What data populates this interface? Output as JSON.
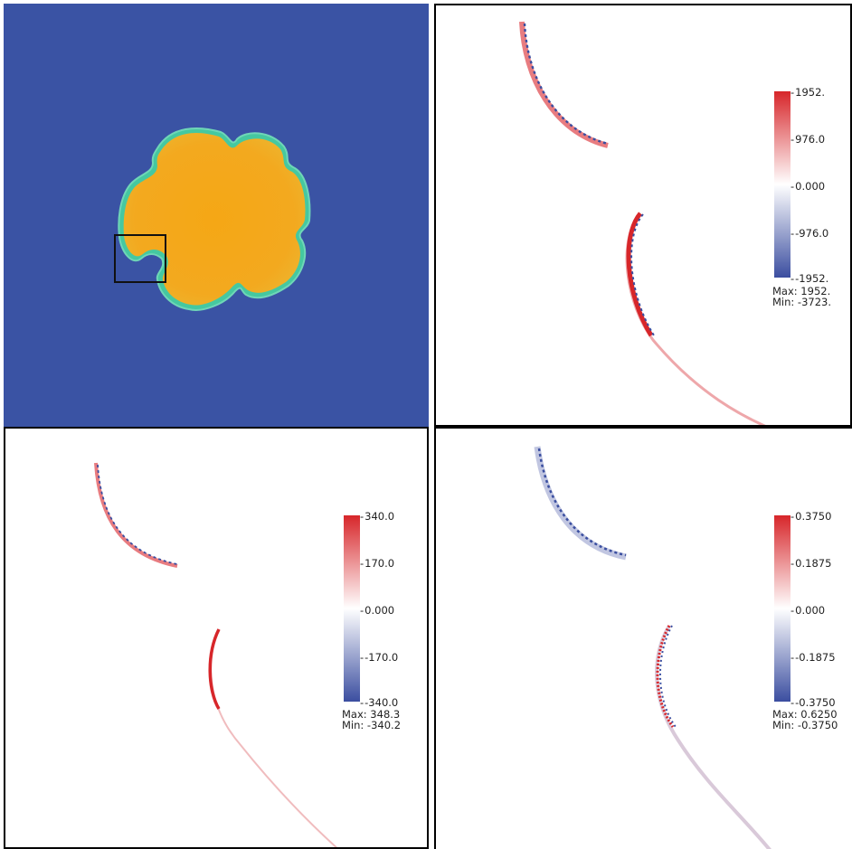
{
  "panels": [
    {
      "name": "domain-overview",
      "colors": {
        "background": "#3a53a4",
        "fill": "#f2a81c",
        "edge": "#45c8a0",
        "zoom_box": "#111111"
      }
    },
    {
      "name": "field-panel-1",
      "colorbar": {
        "ticks": [
          "1952.",
          "976.0",
          "0.000",
          "-976.0",
          "-1952."
        ],
        "max_label": "Max:  1952.",
        "min_label": "Min: -3723."
      }
    },
    {
      "name": "field-panel-2",
      "colorbar": {
        "ticks": [
          "340.0",
          "170.0",
          "0.000",
          "-170.0",
          "-340.0"
        ],
        "max_label": "Max:  348.3",
        "min_label": "Min: -340.2"
      }
    },
    {
      "name": "field-panel-3",
      "colorbar": {
        "ticks": [
          "0.3750",
          "0.1875",
          "0.000",
          "-0.1875",
          "-0.3750"
        ],
        "max_label": "Max:  0.6250",
        "min_label": "Min: -0.3750"
      }
    }
  ],
  "colormap": {
    "high": "#d7262a",
    "mid": "#ffffff",
    "low": "#3b4ea0"
  }
}
